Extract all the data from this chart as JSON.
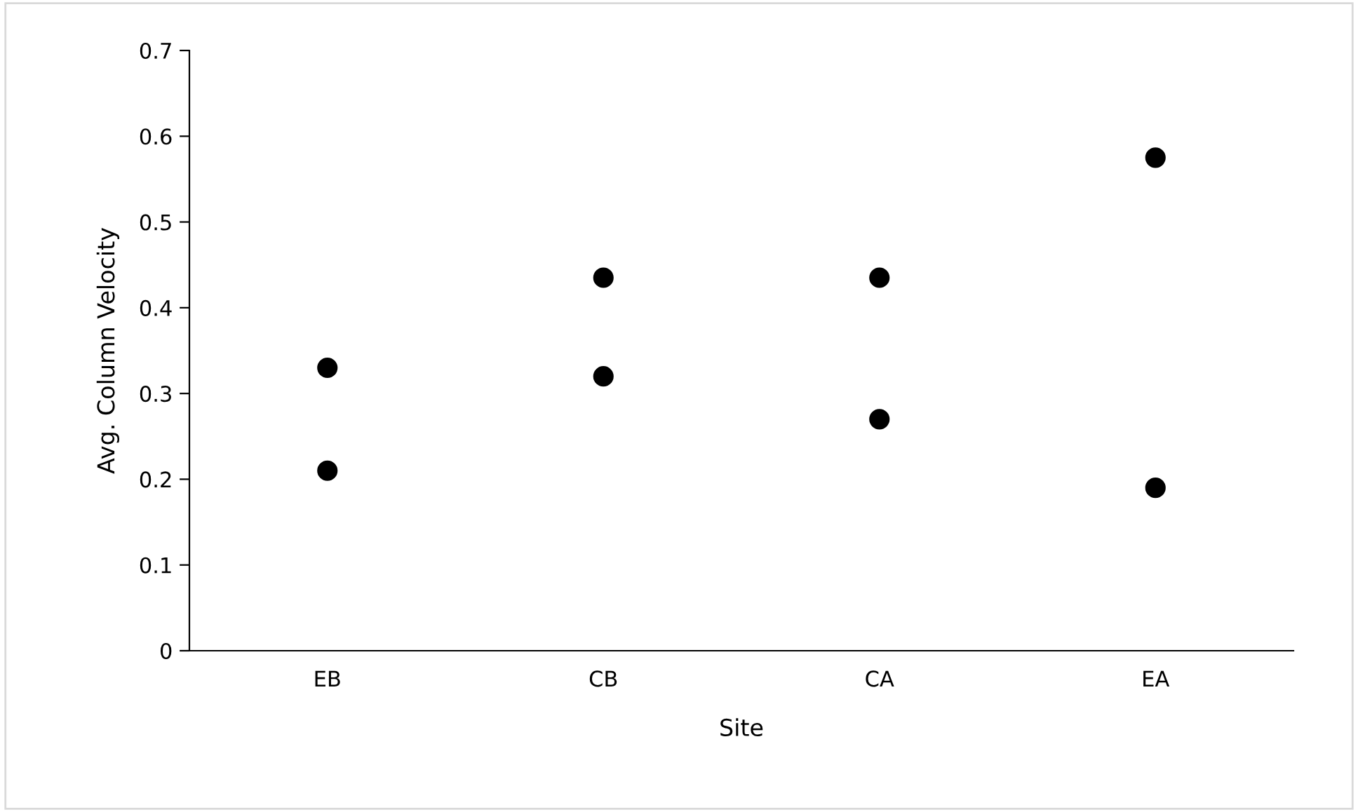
{
  "chart_data": {
    "type": "scatter",
    "xlabel": "Site",
    "ylabel": "Avg. Column Velocity",
    "categories": [
      "EB",
      "CB",
      "CA",
      "EA"
    ],
    "series": [
      {
        "color": "#000000",
        "values": [
          0.33,
          0.435,
          0.435,
          0.575
        ]
      },
      {
        "color": "#000000",
        "values": [
          0.21,
          0.32,
          0.27,
          0.19
        ]
      }
    ],
    "ylim": [
      0,
      0.7
    ],
    "yticks": [
      {
        "value": 0,
        "label": "0"
      },
      0.1,
      0.2,
      0.3,
      0.4,
      0.5,
      0.6,
      0.7
    ],
    "marker": "circle",
    "grid": false,
    "legend": false
  }
}
